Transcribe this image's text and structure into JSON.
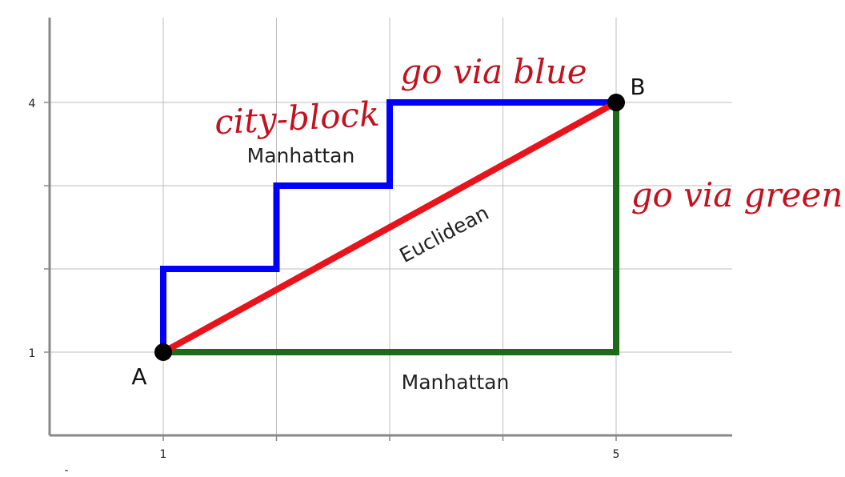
{
  "diagram": {
    "x_ticks": [
      {
        "label": "1",
        "value": 1
      },
      {
        "label": "5",
        "value": 5
      }
    ],
    "y_ticks": [
      {
        "label": "4",
        "value": 4
      },
      {
        "label": "1",
        "value": 1
      }
    ],
    "points": {
      "A": {
        "label": "A",
        "x": 1,
        "y": 1
      },
      "B": {
        "label": "B",
        "x": 5,
        "y": 4
      }
    },
    "paths": {
      "blue": {
        "color": "#0000ff",
        "label": "Manhattan",
        "vertices": [
          [
            1,
            1
          ],
          [
            1,
            2
          ],
          [
            2,
            2
          ],
          [
            2,
            3
          ],
          [
            3,
            3
          ],
          [
            3,
            4
          ],
          [
            5,
            4
          ]
        ]
      },
      "green": {
        "color": "#1a6b1a",
        "label": "Manhattan",
        "vertices": [
          [
            1,
            1
          ],
          [
            5,
            1
          ],
          [
            5,
            4
          ]
        ]
      },
      "red": {
        "color": "#e8141c",
        "label": "Euclidean",
        "vertices": [
          [
            1,
            1
          ],
          [
            5,
            4
          ]
        ]
      }
    },
    "annotations": {
      "city_block": "city-block",
      "go_via_blue": "go via blue",
      "go_via_green": "go via green"
    },
    "colors": {
      "grid": "#bdbdbd",
      "axis": "#888888",
      "annotation": "#c1121f"
    }
  }
}
